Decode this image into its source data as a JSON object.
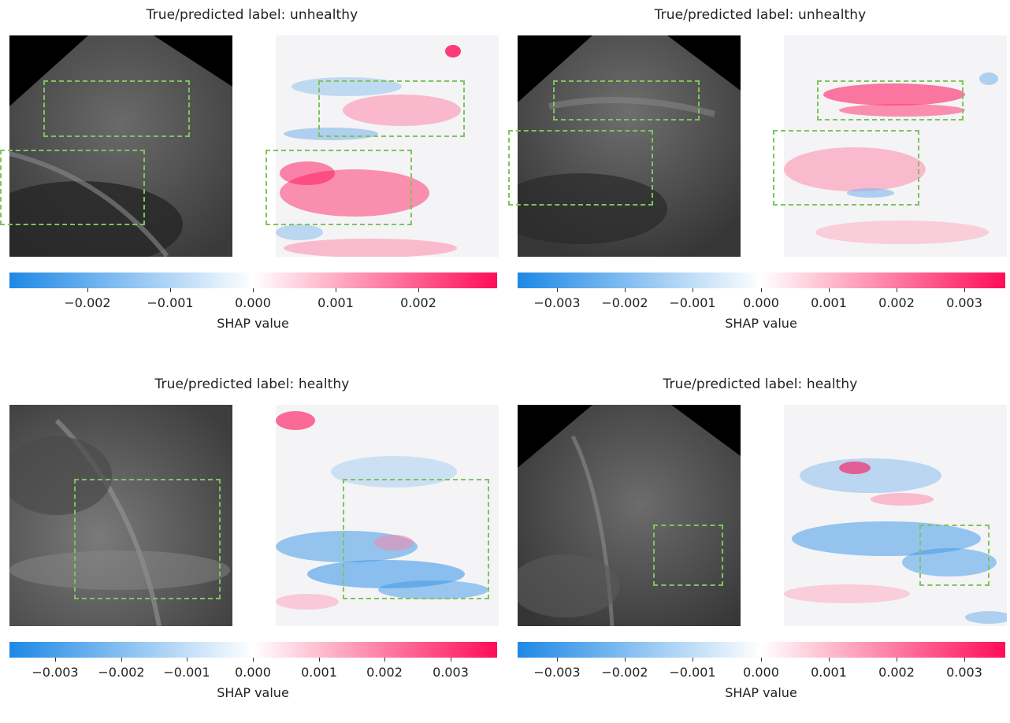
{
  "panels": [
    {
      "title": "True/predicted label: unhealthy",
      "ticks": [
        "−0.002",
        "−0.001",
        "0.000",
        "0.001",
        "0.002"
      ],
      "scale_max": 0.0029,
      "colorbar_label": "SHAP value"
    },
    {
      "title": "True/predicted label: unhealthy",
      "ticks": [
        "−0.003",
        "−0.002",
        "−0.001",
        "0.000",
        "0.001",
        "0.002",
        "0.003"
      ],
      "scale_max": 0.0036,
      "colorbar_label": "SHAP value"
    },
    {
      "title": "True/predicted label: healthy",
      "ticks": [
        "−0.003",
        "−0.002",
        "−0.001",
        "0.000",
        "0.001",
        "0.002",
        "0.003"
      ],
      "scale_max": 0.0037,
      "colorbar_label": "SHAP value"
    },
    {
      "title": "True/predicted label: healthy",
      "ticks": [
        "−0.003",
        "−0.002",
        "−0.001",
        "0.000",
        "0.001",
        "0.002",
        "0.003"
      ],
      "scale_max": 0.0036,
      "colorbar_label": "SHAP value"
    }
  ],
  "colors": {
    "negative": "#1e88e5",
    "positive": "#ff0d57",
    "box": "#7ec45d"
  }
}
